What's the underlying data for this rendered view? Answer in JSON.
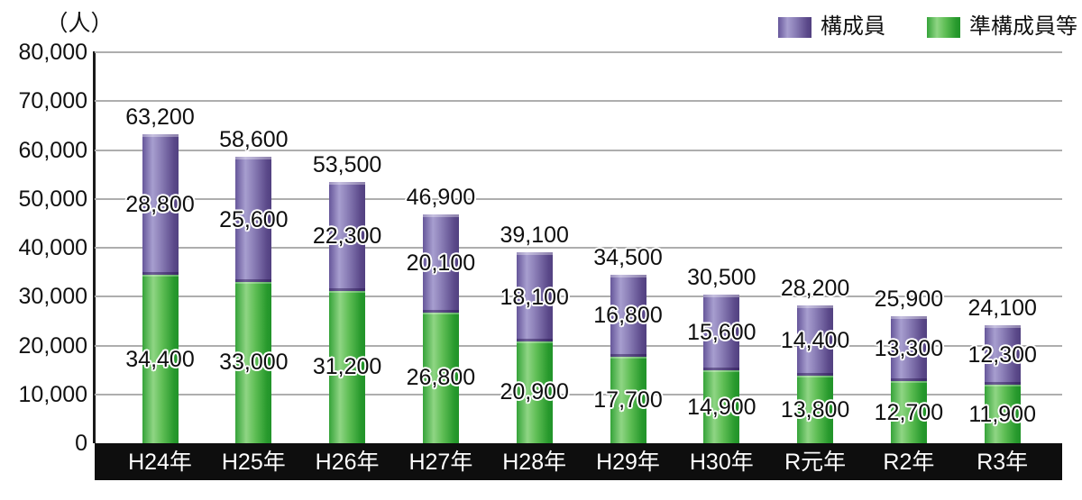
{
  "chart_data": {
    "type": "bar",
    "stacked": true,
    "title": "",
    "ylabel": "（人）",
    "xlabel": "",
    "ylim": [
      0,
      80000
    ],
    "ytick_step": 10000,
    "yticks": [
      "80,000",
      "70,000",
      "60,000",
      "50,000",
      "40,000",
      "30,000",
      "20,000",
      "10,000",
      "0"
    ],
    "grid": true,
    "legend_position": "top-right",
    "categories": [
      "H24年",
      "H25年",
      "H26年",
      "H27年",
      "H28年",
      "H29年",
      "H30年",
      "R元年",
      "R2年",
      "R3年"
    ],
    "series": [
      {
        "name": "構成員",
        "color": "#7b68ab",
        "stack_position": "top",
        "values": [
          28800,
          25600,
          22300,
          20100,
          18100,
          16800,
          15600,
          14400,
          13300,
          12300
        ]
      },
      {
        "name": "準構成員等",
        "color": "#4cb648",
        "stack_position": "bottom",
        "values": [
          34400,
          33000,
          31200,
          26800,
          20900,
          17700,
          14900,
          13800,
          12700,
          11900
        ]
      }
    ],
    "totals": [
      63200,
      58600,
      53500,
      46900,
      39100,
      34500,
      30500,
      28200,
      25900,
      24100
    ],
    "total_labels": [
      "63,200",
      "58,600",
      "53,500",
      "46,900",
      "39,100",
      "34,500",
      "30,500",
      "28,200",
      "25,900",
      "24,100"
    ],
    "series_value_labels": [
      [
        "28,800",
        "25,600",
        "22,300",
        "20,100",
        "18,100",
        "16,800",
        "15,600",
        "14,400",
        "13,300",
        "12,300"
      ],
      [
        "34,400",
        "33,000",
        "31,200",
        "26,800",
        "20,900",
        "17,700",
        "14,900",
        "13,800",
        "12,700",
        "11,900"
      ]
    ]
  },
  "colors": {
    "purple_base": "#7b68ab",
    "purple_highlight": "#a79ecf",
    "purple_dark": "#524180",
    "green_base": "#4cb648",
    "green_highlight": "#8fd584",
    "green_dark": "#21932a",
    "axis_band": "#0e0e0e",
    "gridline": "#aeaeae",
    "label_text": "#0f0f0f"
  }
}
